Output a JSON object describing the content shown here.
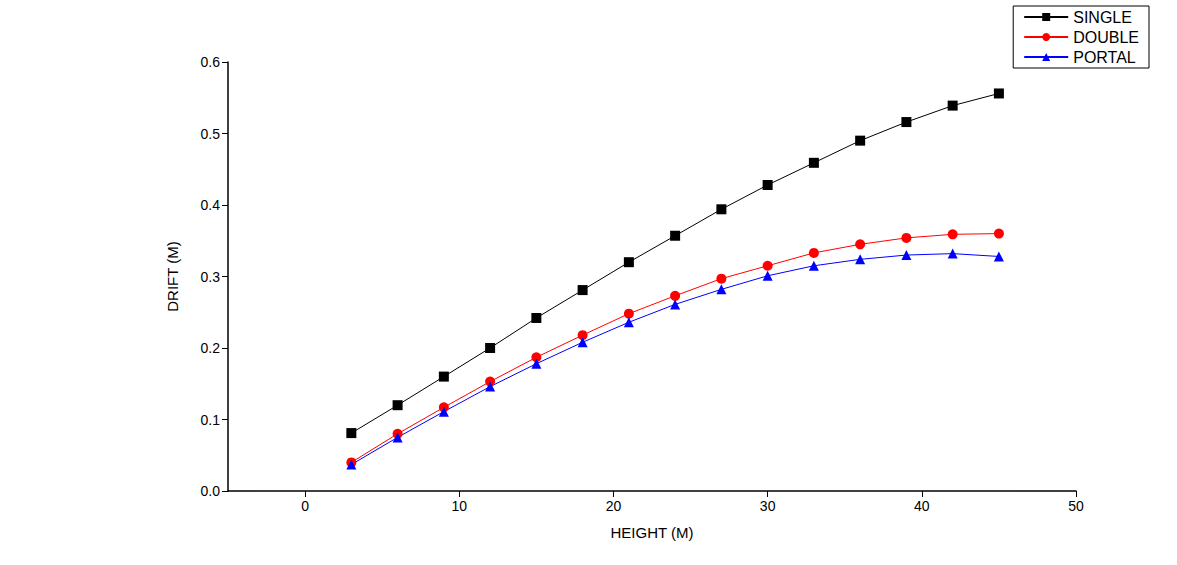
{
  "chart_data": {
    "type": "line",
    "x_label": "HEIGHT (M)",
    "y_label": "DRIFT (M)",
    "x": [
      3,
      6,
      9,
      12,
      15,
      18,
      21,
      24,
      27,
      30,
      33,
      36,
      39,
      42,
      45
    ],
    "series": [
      {
        "name": "SINGLE",
        "color": "#000000",
        "marker": "square",
        "line_style": "solid",
        "values": [
          0.081,
          0.12,
          0.16,
          0.2,
          0.242,
          0.281,
          0.32,
          0.357,
          0.394,
          0.428,
          0.459,
          0.49,
          0.516,
          0.539,
          0.556
        ]
      },
      {
        "name": "DOUBLE",
        "color": "#ff0000",
        "marker": "circle",
        "line_style": "solid",
        "values": [
          0.04,
          0.08,
          0.117,
          0.153,
          0.187,
          0.218,
          0.248,
          0.273,
          0.297,
          0.315,
          0.333,
          0.345,
          0.354,
          0.359,
          0.36
        ]
      },
      {
        "name": "PORTAL",
        "color": "#0000ff",
        "marker": "triangle",
        "line_style": "solid",
        "values": [
          0.037,
          0.075,
          0.111,
          0.146,
          0.178,
          0.208,
          0.236,
          0.261,
          0.282,
          0.301,
          0.315,
          0.324,
          0.33,
          0.332,
          0.328
        ]
      }
    ],
    "xlim": [
      -5,
      50
    ],
    "xticks": [
      0,
      10,
      20,
      30,
      40,
      50
    ],
    "ylim": [
      0,
      0.6
    ],
    "yticks": [
      {
        "value": 0,
        "label": "0.0"
      },
      0.1,
      0.2,
      0.3,
      0.4,
      0.5,
      0.6
    ],
    "grid": false,
    "legend": "top-right"
  }
}
